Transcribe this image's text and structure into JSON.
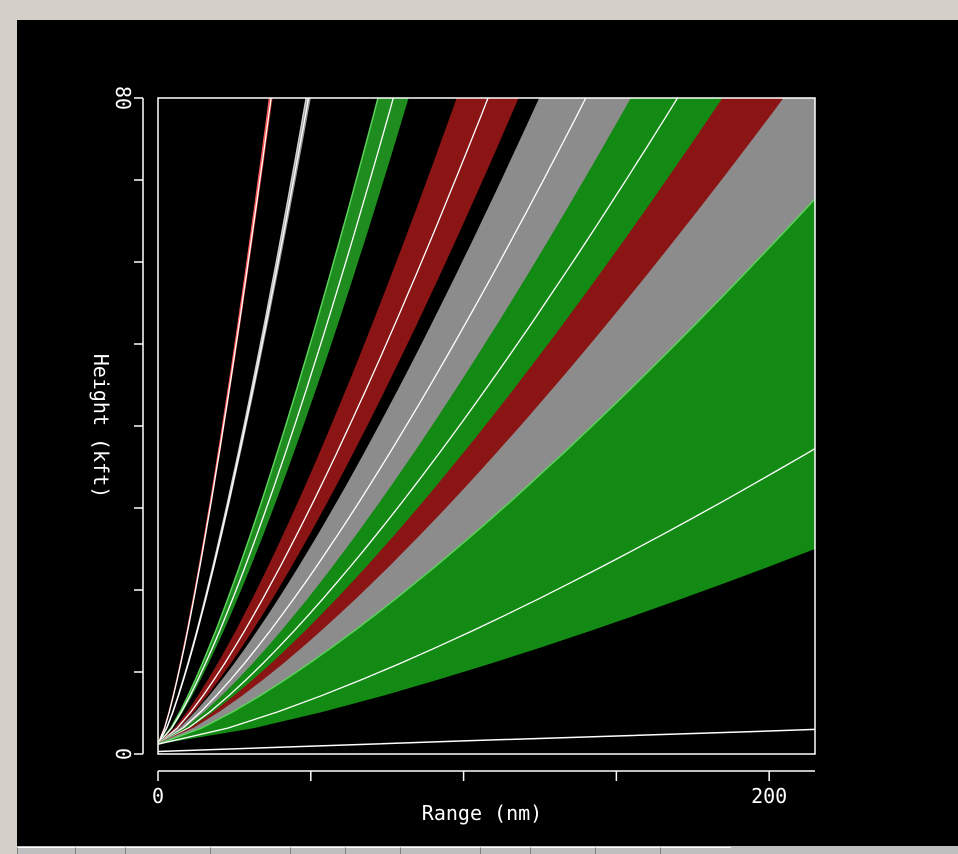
{
  "chart_data": {
    "type": "line",
    "title": "",
    "xlabel": "Range (nm)",
    "ylabel": "Height (kft)",
    "xlim": [
      0,
      215
    ],
    "ylim": [
      0,
      80
    ],
    "xticks": [
      0,
      50,
      100,
      150,
      200
    ],
    "xtick_labels": [
      "0",
      "",
      "",
      "",
      "200"
    ],
    "yticks": [
      0,
      10,
      20,
      30,
      40,
      50,
      60,
      70,
      80
    ],
    "ytick_labels": [
      "0",
      "",
      "",
      "",
      "",
      "",
      "",
      "",
      "80"
    ],
    "grid": false,
    "background": "#000000",
    "bands": [
      {
        "color": "#b4281e",
        "edge_color": "#ff5a5a",
        "range_at_80kft": [
          36.5,
          37.5
        ],
        "centerline": "#ffffff"
      },
      {
        "color": "#9a9a9a",
        "edge_color": "#d0d0d0",
        "range_at_80kft": [
          48.5,
          50
        ],
        "centerline": "#ffffff"
      },
      {
        "color": "#1e8c1e",
        "edge_color": "#5ad25a",
        "range_at_80kft": [
          72,
          82
        ],
        "centerline": "#ffffff"
      },
      {
        "color": "#8b1414",
        "edge_color": "#8b1414",
        "range_at_80kft": [
          98,
          118
        ],
        "centerline": "#ffffff"
      },
      {
        "color": "#8c8c8c",
        "edge_color": "#8c8c8c",
        "range_at_80kft": [
          125,
          155
        ],
        "centerline": "#ffffff"
      },
      {
        "color": "#138a13",
        "edge_color": "#138a13",
        "range_at_80kft": [
          155,
          185
        ],
        "centerline": "#ffffff"
      },
      {
        "color": "#8b1414",
        "edge_color": "#8b1414",
        "range_at_80kft": [
          185,
          260
        ],
        "centerline": "#ffffff"
      },
      {
        "color": "#8c8c8c",
        "edge_color": "#8c8c8c",
        "range_at_80kft": [
          205,
          330
        ],
        "centerline": "#ffffff"
      },
      {
        "color": "#138a13",
        "edge_color": "#5ad25a",
        "range_at_80kft": [
          245,
          540
        ],
        "centerline": "#ffffff"
      }
    ],
    "ground_trace": {
      "color": "#ffffff",
      "x": [
        0,
        100,
        200,
        215
      ],
      "y": [
        0.3,
        1.6,
        2.8,
        3.0
      ]
    }
  }
}
